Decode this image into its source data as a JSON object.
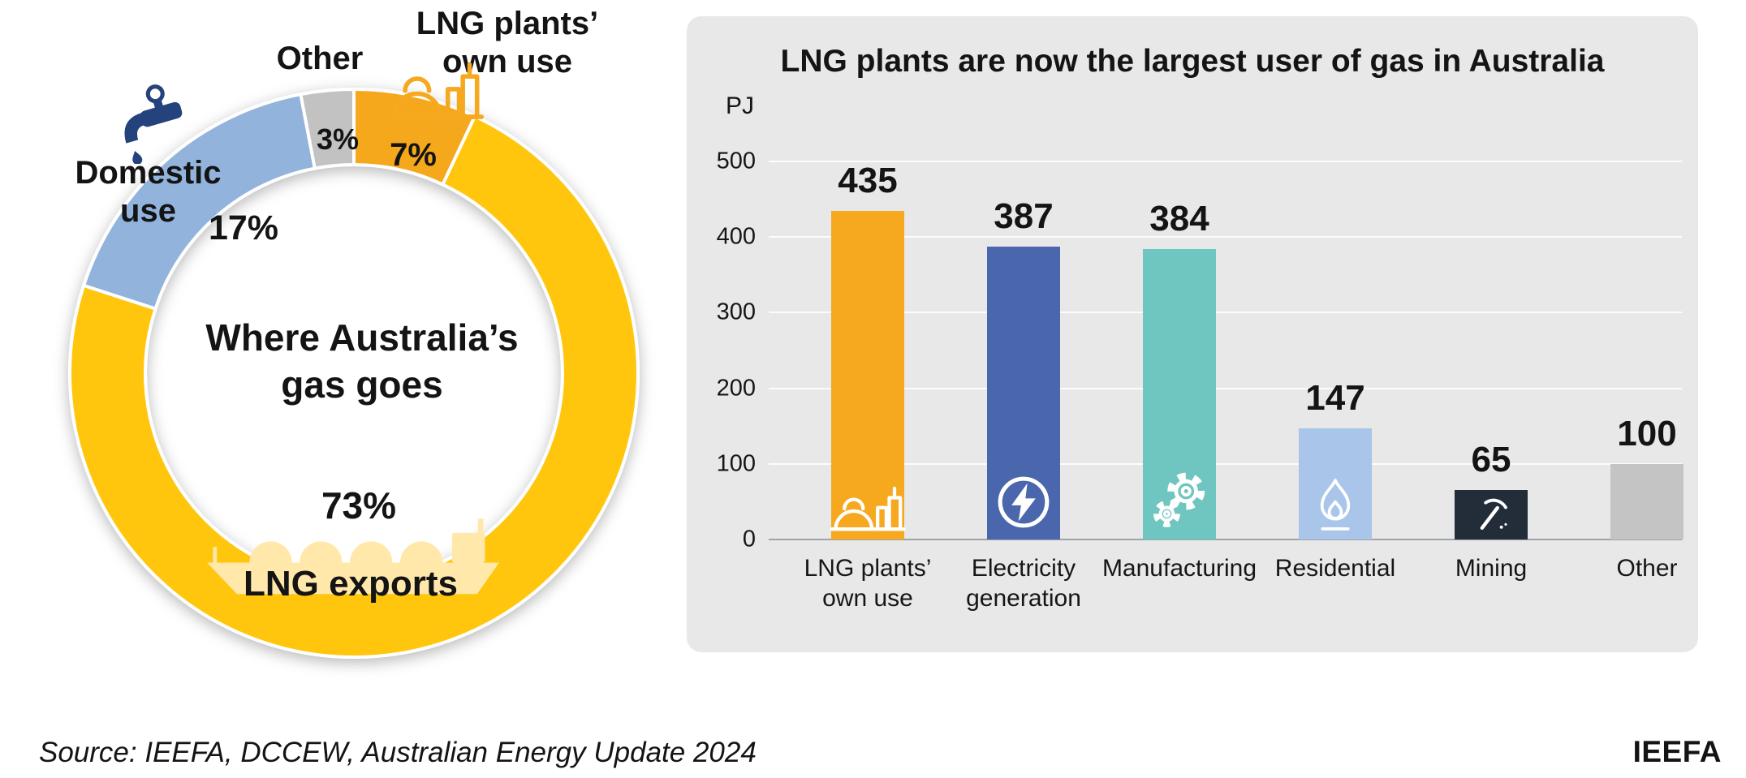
{
  "donut": {
    "center_title": "Where Australia’s\ngas goes",
    "labels": {
      "own_use": "LNG plants’\nown use",
      "other": "Other",
      "domestic": "Domestic\nuse",
      "exports": "LNG exports"
    },
    "icons": [
      "faucet-icon",
      "lng-plant-icon",
      "lng-ship-icon"
    ],
    "icon_colors": {
      "faucet": "#24427C",
      "ship": "#FFE8A9",
      "plant": "#F6A81F"
    }
  },
  "footer": {
    "source": "Source: IEEFA, DCCEW, Australian Energy Update 2024",
    "logo": "IEEFA"
  },
  "chart_data": [
    {
      "type": "pie",
      "subtype": "donut",
      "title": "Where Australia’s gas goes",
      "direction": "clockwise",
      "start_angle_deg": 0,
      "slices": [
        {
          "label": "LNG plants’ own use",
          "value": 7,
          "display": "7%",
          "color": "#F6A81F"
        },
        {
          "label": "LNG exports",
          "value": 73,
          "display": "73%",
          "color": "#FFC60B"
        },
        {
          "label": "Domestic use",
          "value": 17,
          "display": "17%",
          "color": "#92B4DC"
        },
        {
          "label": "Other",
          "value": 3,
          "display": "3%",
          "color": "#C2C2C2"
        }
      ]
    },
    {
      "type": "bar",
      "title": "LNG plants are now the largest user of gas in Australia",
      "ylabel": "PJ",
      "ylim": [
        0,
        500
      ],
      "yticks": [
        0,
        100,
        200,
        300,
        400,
        500
      ],
      "grid": true,
      "legend": false,
      "panel_background": "#E8E8E8",
      "icon_color": "#FFFFFF",
      "categories": [
        "LNG plants’\nown use",
        "Electricity\ngeneration",
        "Manufacturing",
        "Residential",
        "Mining",
        "Other"
      ],
      "values": [
        435,
        387,
        384,
        147,
        65,
        100
      ],
      "colors": [
        "#F6A81F",
        "#4A67AE",
        "#6FC5BF",
        "#A9C6EA",
        "#232C39",
        "#C4C4C4"
      ],
      "icons": [
        "lng-plant-icon",
        "lightning-icon",
        "gears-icon",
        "flame-icon",
        "pickaxe-icon",
        null
      ]
    }
  ]
}
